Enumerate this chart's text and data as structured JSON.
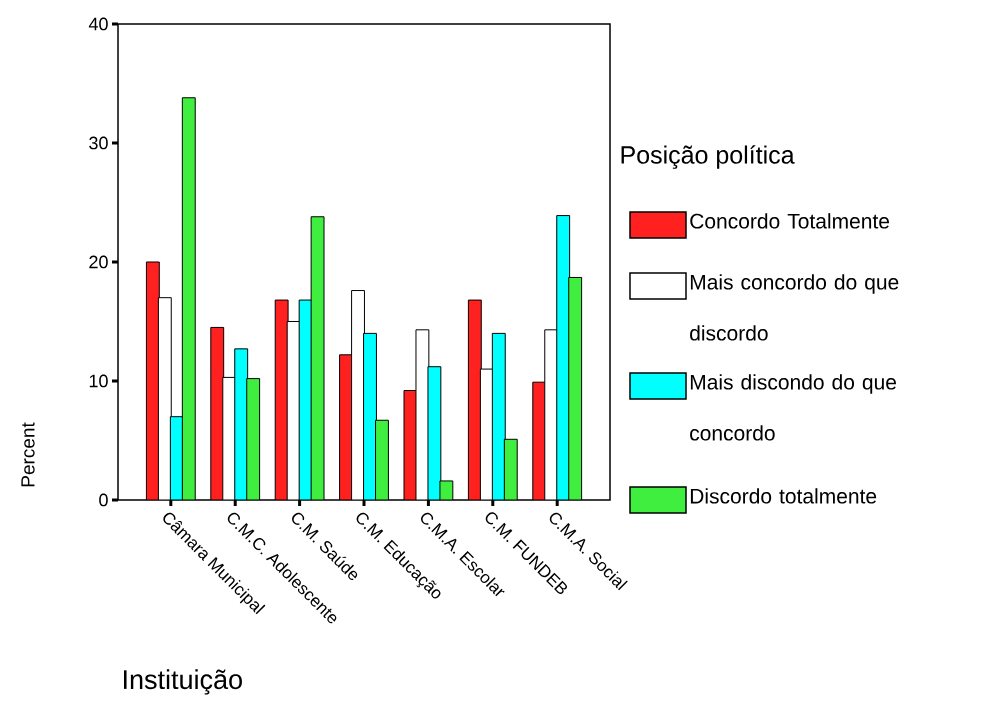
{
  "chart_data": {
    "type": "bar",
    "xlabel": "Instituição",
    "ylabel": "Percent",
    "legend_title": "Posição política",
    "categories": [
      "Câmara Municipal",
      "C.M.C. Adolescente",
      "C.M. Saúde",
      "C.M. Educação",
      "C.M.A. Escolar",
      "C.M. FUNDEB",
      "C.M.A. Social"
    ],
    "series": [
      {
        "name": "Concordo Totalmente",
        "color": "#ff2020",
        "values": [
          20.0,
          14.5,
          16.8,
          12.2,
          9.2,
          16.8,
          9.9
        ]
      },
      {
        "name": "Mais concordo do que discordo",
        "color": "#ffffff",
        "values": [
          17.0,
          10.3,
          15.0,
          17.6,
          14.3,
          11.0,
          14.3
        ]
      },
      {
        "name": "Mais discondo do que concordo",
        "color": "#00ffff",
        "values": [
          7.0,
          12.7,
          16.8,
          14.0,
          11.2,
          14.0,
          23.9
        ]
      },
      {
        "name": "Discordo totalmente",
        "color": "#40ee40",
        "values": [
          33.8,
          10.2,
          23.8,
          6.7,
          1.6,
          5.1,
          18.7
        ]
      }
    ],
    "ylim": [
      0,
      40
    ],
    "yticks": [
      0,
      10,
      20,
      30,
      40
    ],
    "grid": false,
    "legend": "right"
  }
}
